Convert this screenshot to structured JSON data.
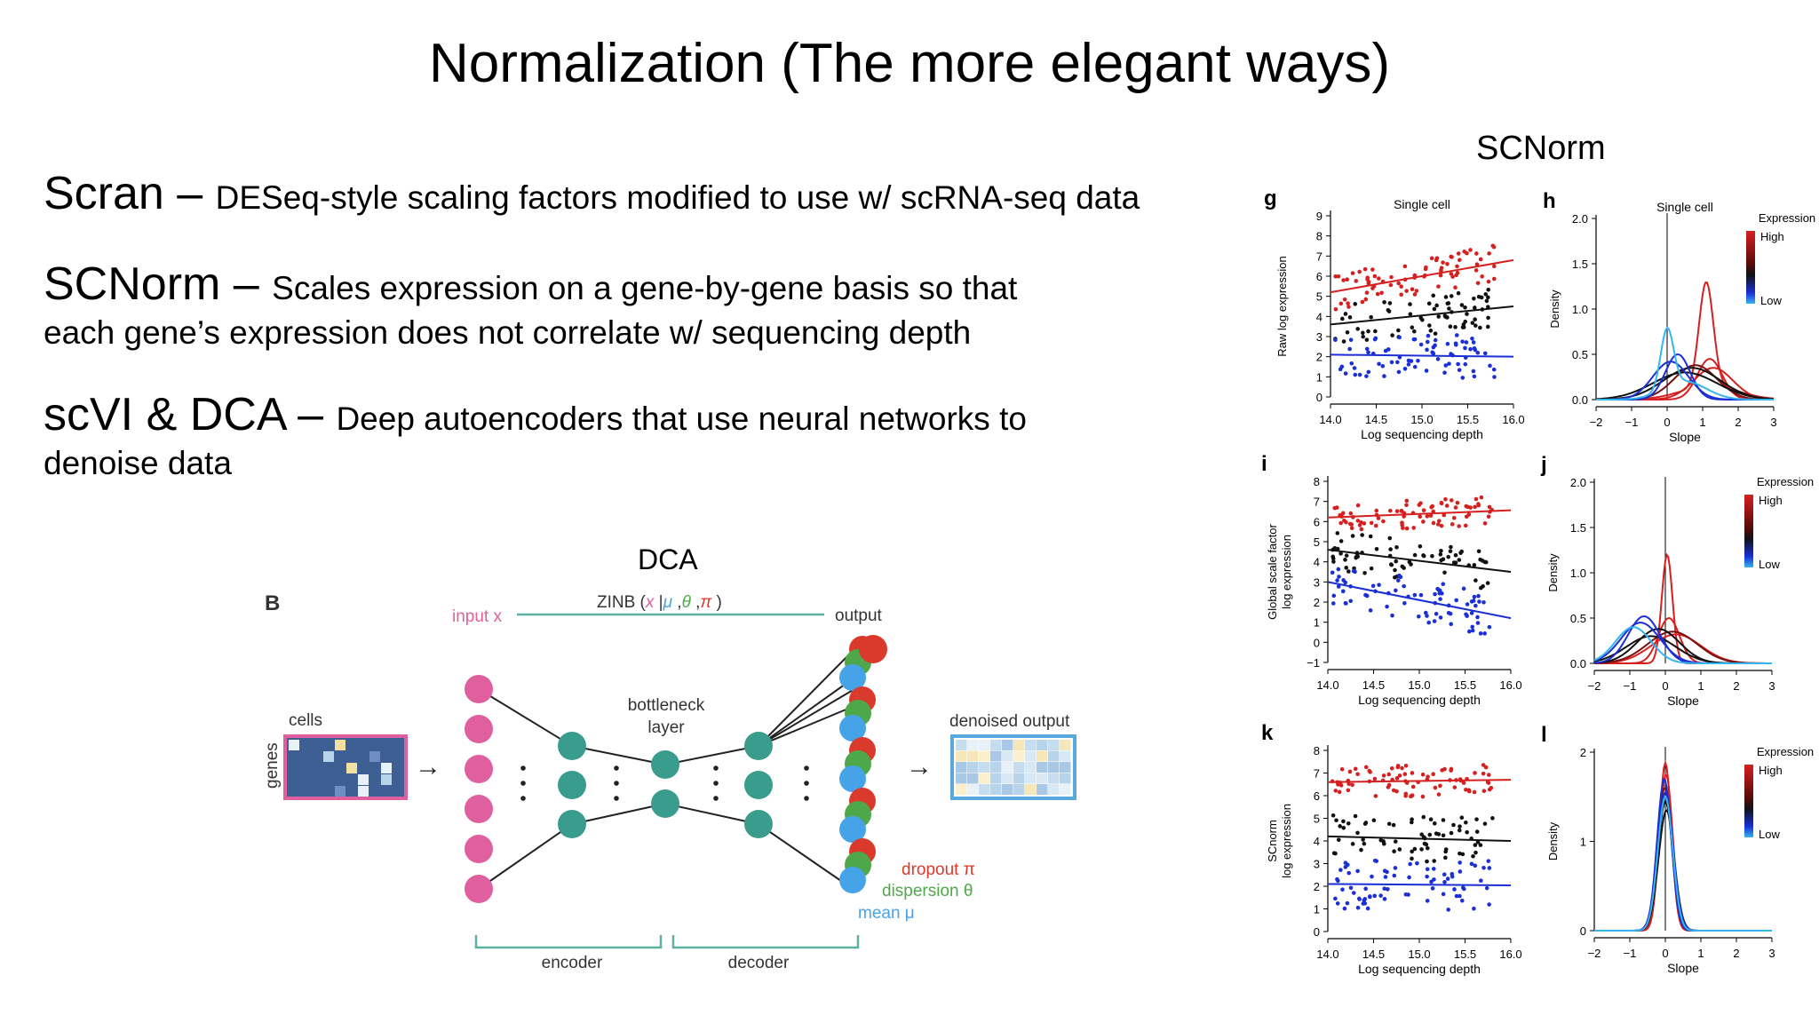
{
  "slide": {
    "title": "Normalization (The more elegant ways)"
  },
  "bullets": [
    {
      "lead": "Scran – ",
      "rest": "DESeq-style scaling factors modified to use w/ scRNA-seq data",
      "line2": ""
    },
    {
      "lead": "SCNorm – ",
      "rest": "Scales expression on a gene-by-gene basis so that",
      "line2": "each gene’s expression does not correlate w/ sequencing depth"
    },
    {
      "lead": "scVI & DCA – ",
      "rest": "Deep autoencoders that use neural networks to",
      "line2": "denoise data"
    }
  ],
  "dca": {
    "label": "DCA",
    "panel_letter": "B",
    "input": "input x",
    "zinb_prefix": "ZINB (",
    "zinb_x": "x",
    "zinb_bar": " |",
    "zinb_mu": "μ",
    "zinb_comma1": " ,",
    "zinb_theta": "θ",
    "zinb_comma2": " ,",
    "zinb_pi": "π",
    "zinb_close": " )",
    "output": "output",
    "cells": "cells",
    "genes": "genes",
    "bottleneck": [
      "bottleneck",
      "layer"
    ],
    "denoised": "denoised output",
    "dropout": "dropout π",
    "dispersion": "dispersion θ",
    "mean": "mean μ",
    "encoder": "encoder",
    "decoder": "decoder",
    "colors": {
      "pink": "#e0609f",
      "teal": "#3a9c8c",
      "red": "#d93a2b",
      "green": "#4ea84a",
      "blue": "#46a3e8",
      "line": "#5fb0a0"
    }
  },
  "scnorm": {
    "label": "SCNorm",
    "scatter_panels": [
      {
        "letter": "g",
        "title": "Single cell",
        "ylabel": [
          "Raw log expression"
        ],
        "xlabel": "Log sequencing depth",
        "yticks": [
          "0",
          "1",
          "2",
          "3",
          "4",
          "5",
          "6",
          "7",
          "8",
          "9"
        ],
        "xticks": [
          "14.0",
          "14.5",
          "15.0",
          "15.5",
          "16.0"
        ]
      },
      {
        "letter": "i",
        "title": "",
        "ylabel": [
          "Global scale factor",
          "log expression"
        ],
        "xlabel": "Log sequencing depth",
        "yticks": [
          "−1",
          "0",
          "1",
          "2",
          "3",
          "4",
          "5",
          "6",
          "7",
          "8"
        ],
        "xticks": [
          "14.0",
          "14.5",
          "15.0",
          "15.5",
          "16.0"
        ]
      },
      {
        "letter": "k",
        "title": "",
        "ylabel": [
          "SCnorm",
          "log expression"
        ],
        "xlabel": "Log sequencing depth",
        "yticks": [
          "0",
          "1",
          "2",
          "3",
          "4",
          "5",
          "6",
          "7",
          "8"
        ],
        "xticks": [
          "14.0",
          "14.5",
          "15.0",
          "15.5",
          "16.0"
        ]
      }
    ],
    "density_panels": [
      {
        "letter": "h",
        "title": "Single cell",
        "ylabel": "Density",
        "xlabel": "Slope",
        "yticks": [
          "0.0",
          "0.5",
          "1.0",
          "1.5",
          "2.0"
        ],
        "xticks": [
          "−2",
          "−1",
          "0",
          "1",
          "2",
          "3"
        ],
        "legend": {
          "title": "Expression",
          "high": "High",
          "low": "Low"
        }
      },
      {
        "letter": "j",
        "title": "",
        "ylabel": "Density",
        "xlabel": "Slope",
        "yticks": [
          "0.0",
          "0.5",
          "1.0",
          "1.5",
          "2.0"
        ],
        "xticks": [
          "−2",
          "−1",
          "0",
          "1",
          "2",
          "3"
        ],
        "legend": {
          "title": "Expression",
          "high": "High",
          "low": "Low"
        }
      },
      {
        "letter": "l",
        "title": "",
        "ylabel": "Density",
        "xlabel": "Slope",
        "yticks": [
          "0",
          "1",
          "2"
        ],
        "xticks": [
          "−2",
          "−1",
          "0",
          "1",
          "2",
          "3"
        ],
        "legend": {
          "title": "Expression",
          "high": "High",
          "low": "Low"
        }
      }
    ],
    "colors": {
      "high": "#d62020",
      "mid": "#111111",
      "low": "#1a2fd6",
      "lowest": "#35b5ef"
    }
  }
}
